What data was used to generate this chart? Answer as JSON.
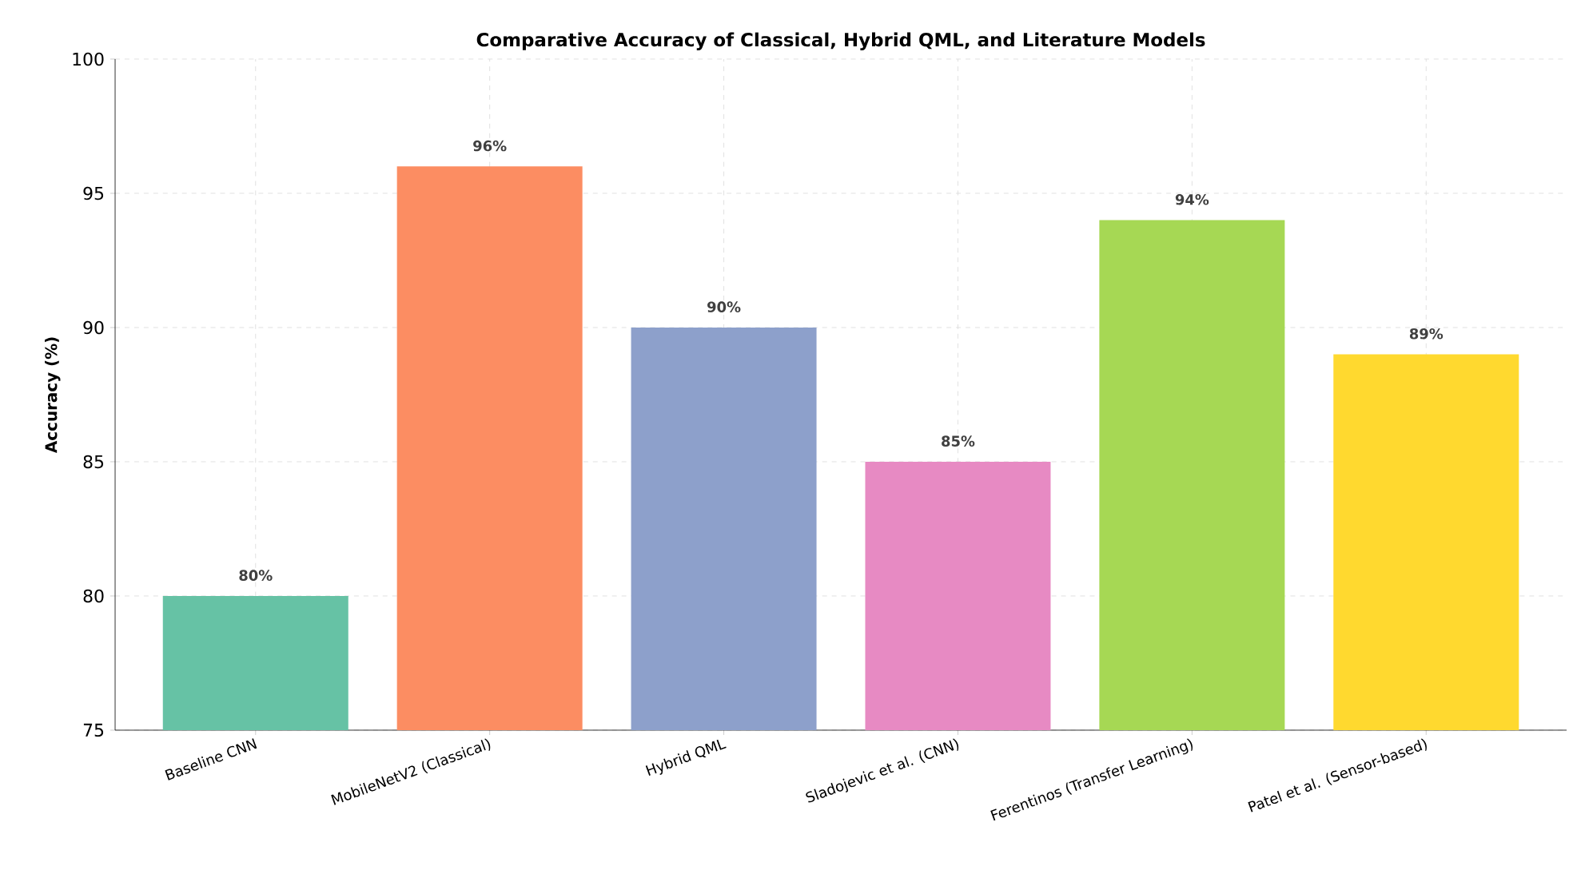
{
  "chart_data": {
    "type": "bar",
    "title": "Comparative Accuracy of Classical, Hybrid QML, and Literature Models",
    "ylabel": "Accuracy (%)",
    "categories": [
      "Baseline CNN",
      "MobileNetV2 (Classical)",
      "Hybrid QML",
      "Sladojevic et al. (CNN)",
      "Ferentinos (Transfer Learning)",
      "Patel et al. (Sensor-based)"
    ],
    "values": [
      80,
      96,
      90,
      85,
      94,
      89
    ],
    "colors": [
      "#66c2a5",
      "#fc8d62",
      "#8da0cb",
      "#e78ac3",
      "#a6d854",
      "#ffd92f"
    ],
    "value_labels": [
      "80%",
      "96%",
      "90%",
      "85%",
      "94%",
      "89%"
    ],
    "ylim": [
      75,
      100
    ],
    "yticks": [
      75,
      80,
      85,
      90,
      95,
      100
    ],
    "grid": true
  }
}
